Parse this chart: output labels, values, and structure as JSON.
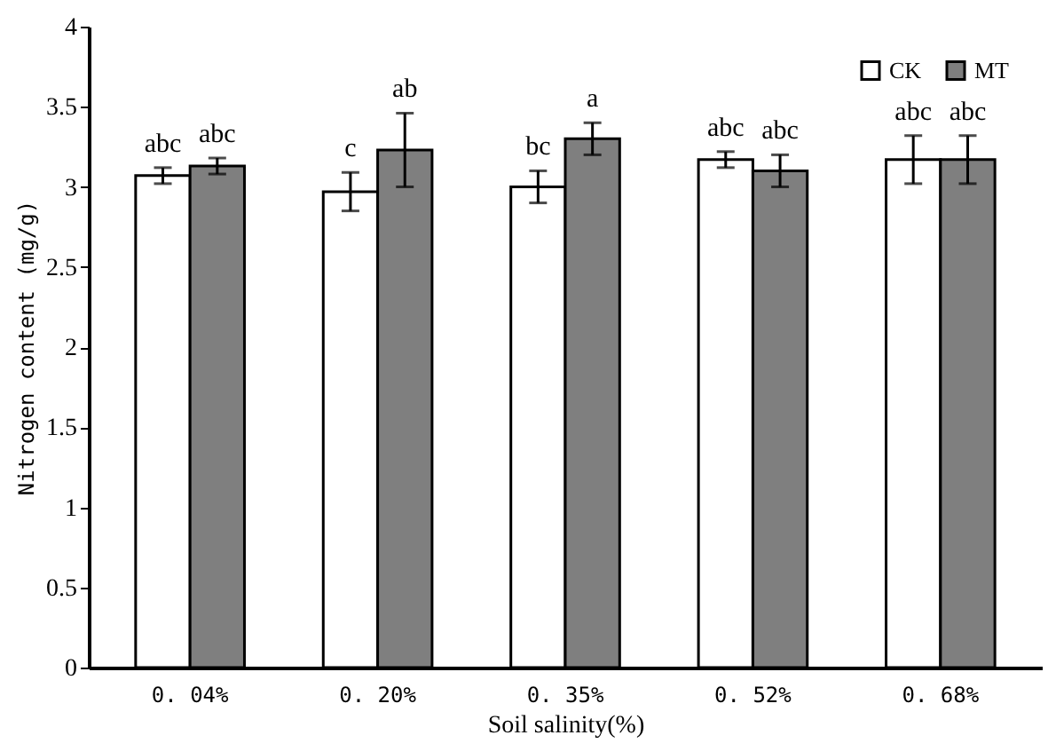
{
  "chart_data": {
    "type": "bar",
    "xlabel": "Soil salinity(%)",
    "ylabel": "Nitrogen content (mg/g)",
    "categories": [
      "0. 04%",
      "0. 20%",
      "0. 35%",
      "0. 52%",
      "0. 68%"
    ],
    "series": [
      {
        "name": "CK",
        "color": "#ffffff",
        "values": [
          3.07,
          2.97,
          3.0,
          3.17,
          3.17
        ],
        "errors": [
          0.05,
          0.12,
          0.1,
          0.05,
          0.15
        ],
        "value_labels": [
          "abc",
          "c",
          "bc",
          "abc",
          "abc"
        ]
      },
      {
        "name": "MT",
        "color": "#7f7f7f",
        "values": [
          3.13,
          3.23,
          3.3,
          3.1,
          3.17
        ],
        "errors": [
          0.05,
          0.23,
          0.1,
          0.1,
          0.15
        ],
        "value_labels": [
          "abc",
          "ab",
          "a",
          "abc",
          "abc"
        ]
      }
    ],
    "ylim": [
      0,
      4
    ],
    "yticks": [
      0,
      0.5,
      1,
      1.5,
      2,
      2.5,
      3,
      3.5,
      4
    ],
    "grid": false,
    "legend": "top right"
  }
}
